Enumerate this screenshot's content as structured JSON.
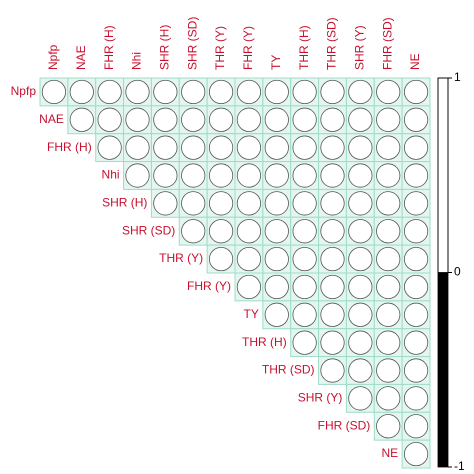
{
  "chart_data": {
    "type": "correlation",
    "variables": [
      "Npfp",
      "NAE",
      "FHR (H)",
      "Nhi",
      "SHR (H)",
      "SHR (SD)",
      "THR (Y)",
      "FHR (Y)",
      "TY",
      "THR (H)",
      "THR (SD)",
      "SHR (Y)",
      "FHR (SD)",
      "NE"
    ],
    "matrix": [
      [
        1,
        1,
        1,
        1,
        1,
        1,
        1,
        1,
        1,
        1,
        1,
        1,
        1,
        1
      ],
      [
        null,
        1,
        1,
        1,
        1,
        1,
        1,
        1,
        1,
        1,
        1,
        1,
        1,
        1
      ],
      [
        null,
        null,
        1,
        1,
        1,
        1,
        1,
        1,
        1,
        1,
        1,
        1,
        1,
        1
      ],
      [
        null,
        null,
        null,
        1,
        1,
        1,
        1,
        1,
        1,
        1,
        1,
        1,
        1,
        1
      ],
      [
        null,
        null,
        null,
        null,
        1,
        1,
        1,
        1,
        1,
        1,
        1,
        1,
        1,
        1
      ],
      [
        null,
        null,
        null,
        null,
        null,
        1,
        1,
        1,
        1,
        1,
        1,
        1,
        1,
        1
      ],
      [
        null,
        null,
        null,
        null,
        null,
        null,
        1,
        1,
        1,
        1,
        1,
        1,
        1,
        1
      ],
      [
        null,
        null,
        null,
        null,
        null,
        null,
        null,
        1,
        1,
        1,
        1,
        1,
        1,
        1
      ],
      [
        null,
        null,
        null,
        null,
        null,
        null,
        null,
        null,
        1,
        1,
        1,
        1,
        1,
        1
      ],
      [
        null,
        null,
        null,
        null,
        null,
        null,
        null,
        null,
        null,
        1,
        1,
        1,
        1,
        1
      ],
      [
        null,
        null,
        null,
        null,
        null,
        null,
        null,
        null,
        null,
        null,
        1,
        1,
        1,
        1
      ],
      [
        null,
        null,
        null,
        null,
        null,
        null,
        null,
        null,
        null,
        null,
        null,
        1,
        1,
        1
      ],
      [
        null,
        null,
        null,
        null,
        null,
        null,
        null,
        null,
        null,
        null,
        null,
        null,
        1,
        1
      ],
      [
        null,
        null,
        null,
        null,
        null,
        null,
        null,
        null,
        null,
        null,
        null,
        null,
        null,
        1
      ]
    ],
    "colorlim": [
      -1,
      1
    ],
    "colorticks": [
      -1,
      0,
      1
    ],
    "negative_color": "#000000",
    "positive_color": "#ffffff",
    "cell_color": "#e3f6f0",
    "grid_color": "#9fdcc8",
    "label_color": "#c8102e"
  }
}
